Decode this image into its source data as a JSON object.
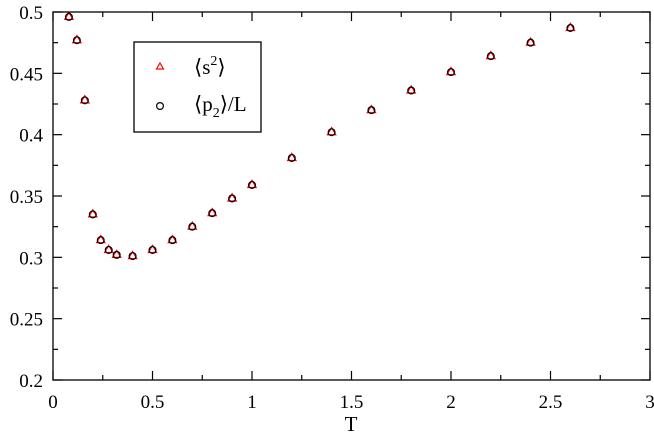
{
  "chart_data": {
    "type": "scatter",
    "title": "",
    "xlabel": "T",
    "ylabel": "",
    "xlim": [
      0,
      3
    ],
    "ylim": [
      0.2,
      0.5
    ],
    "x_ticks": [
      0,
      0.5,
      1,
      1.5,
      2,
      2.5,
      3
    ],
    "x_tick_labels": [
      "0",
      "0.5",
      "1",
      "1.5",
      "2",
      "2.5",
      "3"
    ],
    "y_ticks": [
      0.2,
      0.25,
      0.3,
      0.35,
      0.4,
      0.45,
      0.5
    ],
    "y_tick_labels": [
      "0.2",
      "0.25",
      "0.3",
      "0.35",
      "0.4",
      "0.45",
      "0.5"
    ],
    "grid": false,
    "legend_position": "top-left",
    "x": [
      0.08,
      0.12,
      0.16,
      0.2,
      0.24,
      0.28,
      0.32,
      0.4,
      0.5,
      0.6,
      0.7,
      0.8,
      0.9,
      1.0,
      1.2,
      1.4,
      1.6,
      1.8,
      2.0,
      2.2,
      2.4,
      2.6
    ],
    "series": [
      {
        "name": "⟨s²⟩",
        "marker": "triangle",
        "color": "#ff0000",
        "values": [
          0.496,
          0.477,
          0.428,
          0.335,
          0.314,
          0.306,
          0.302,
          0.301,
          0.306,
          0.314,
          0.325,
          0.336,
          0.348,
          0.359,
          0.381,
          0.402,
          0.42,
          0.436,
          0.451,
          0.464,
          0.475,
          0.487
        ]
      },
      {
        "name": "⟨p₂⟩/L",
        "marker": "circle",
        "color": "#000000",
        "values": [
          0.496,
          0.477,
          0.428,
          0.335,
          0.314,
          0.306,
          0.302,
          0.301,
          0.306,
          0.314,
          0.325,
          0.336,
          0.348,
          0.359,
          0.381,
          0.402,
          0.42,
          0.436,
          0.451,
          0.464,
          0.475,
          0.487
        ]
      }
    ],
    "legend": [
      {
        "label_main": "⟨s",
        "label_sup": "2",
        "label_end": "⟩"
      },
      {
        "label_main": "⟨p",
        "label_sub": "2",
        "label_end": "⟩/L"
      }
    ]
  }
}
